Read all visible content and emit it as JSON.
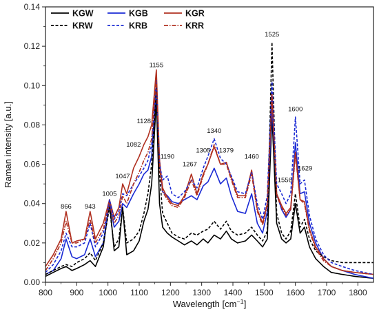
{
  "chart_data": {
    "type": "line",
    "xlabel": "Wavelength [cm",
    "xlabel_sup": "−1",
    "xlabel_end": "]",
    "ylabel": "Raman intensity [a.u.]",
    "xlim": [
      800,
      1850
    ],
    "ylim": [
      0,
      0.14
    ],
    "xticks": [
      "800",
      "900",
      "1000",
      "1100",
      "1200",
      "1300",
      "1400",
      "1500",
      "1600",
      "1700",
      "1800"
    ],
    "yticks": [
      "0.00",
      "0.02",
      "0.04",
      "0.06",
      "0.08",
      "0.10",
      "0.12",
      "0.14"
    ],
    "grid": false,
    "legend_position": "top-left",
    "peak_labels": [
      {
        "text": "866",
        "x": 866,
        "y": 0.036
      },
      {
        "text": "943",
        "x": 943,
        "y": 0.036
      },
      {
        "text": "1005",
        "x": 1005,
        "y": 0.0425
      },
      {
        "text": "1047",
        "x": 1047,
        "y": 0.0515
      },
      {
        "text": "1082",
        "x": 1082,
        "y": 0.0675
      },
      {
        "text": "1128",
        "x": 1115,
        "y": 0.0795
      },
      {
        "text": "1155",
        "x": 1155,
        "y": 0.108
      },
      {
        "text": "1190",
        "x": 1190,
        "y": 0.0615
      },
      {
        "text": "1267",
        "x": 1262,
        "y": 0.0575
      },
      {
        "text": "1305",
        "x": 1305,
        "y": 0.0645
      },
      {
        "text": "1340",
        "x": 1340,
        "y": 0.0745
      },
      {
        "text": "1379",
        "x": 1379,
        "y": 0.0645
      },
      {
        "text": "1460",
        "x": 1460,
        "y": 0.0615
      },
      {
        "text": "1525",
        "x": 1525,
        "y": 0.1235
      },
      {
        "text": "1556",
        "x": 1566,
        "y": 0.0495
      },
      {
        "text": "1600",
        "x": 1600,
        "y": 0.0855
      },
      {
        "text": "1629",
        "x": 1631,
        "y": 0.0555
      }
    ],
    "x": [
      800,
      825,
      850,
      866,
      885,
      900,
      925,
      943,
      960,
      985,
      1005,
      1020,
      1035,
      1047,
      1060,
      1082,
      1100,
      1115,
      1128,
      1140,
      1155,
      1165,
      1175,
      1190,
      1205,
      1225,
      1245,
      1267,
      1285,
      1305,
      1320,
      1340,
      1360,
      1379,
      1395,
      1415,
      1440,
      1460,
      1478,
      1495,
      1510,
      1525,
      1540,
      1556,
      1570,
      1585,
      1600,
      1615,
      1629,
      1645,
      1665,
      1690,
      1715,
      1750,
      1790,
      1850
    ],
    "series": [
      {
        "name": "KGW",
        "color": "#000000",
        "dash": "solid",
        "values": [
          0.003,
          0.005,
          0.007,
          0.008,
          0.006,
          0.007,
          0.009,
          0.011,
          0.008,
          0.018,
          0.041,
          0.016,
          0.018,
          0.038,
          0.014,
          0.016,
          0.021,
          0.031,
          0.037,
          0.05,
          0.093,
          0.04,
          0.028,
          0.025,
          0.023,
          0.021,
          0.019,
          0.021,
          0.019,
          0.022,
          0.02,
          0.024,
          0.022,
          0.026,
          0.022,
          0.02,
          0.021,
          0.024,
          0.021,
          0.018,
          0.022,
          0.085,
          0.03,
          0.022,
          0.02,
          0.022,
          0.04,
          0.025,
          0.028,
          0.018,
          0.012,
          0.008,
          0.005,
          0.004,
          0.003,
          0.002
        ]
      },
      {
        "name": "KGB",
        "color": "#1a2ad4",
        "dash": "solid",
        "values": [
          0.004,
          0.006,
          0.012,
          0.022,
          0.013,
          0.012,
          0.014,
          0.022,
          0.013,
          0.02,
          0.041,
          0.028,
          0.031,
          0.04,
          0.038,
          0.045,
          0.05,
          0.055,
          0.057,
          0.064,
          0.1,
          0.062,
          0.046,
          0.044,
          0.041,
          0.04,
          0.042,
          0.044,
          0.042,
          0.049,
          0.051,
          0.058,
          0.05,
          0.053,
          0.044,
          0.036,
          0.035,
          0.045,
          0.03,
          0.025,
          0.036,
          0.09,
          0.045,
          0.037,
          0.033,
          0.037,
          0.071,
          0.045,
          0.046,
          0.03,
          0.02,
          0.012,
          0.008,
          0.006,
          0.004,
          0.002
        ]
      },
      {
        "name": "KGR",
        "color": "#b03020",
        "dash": "solid",
        "values": [
          0.008,
          0.014,
          0.022,
          0.036,
          0.02,
          0.021,
          0.022,
          0.036,
          0.022,
          0.03,
          0.042,
          0.033,
          0.038,
          0.05,
          0.045,
          0.058,
          0.064,
          0.07,
          0.074,
          0.08,
          0.108,
          0.062,
          0.048,
          0.043,
          0.04,
          0.039,
          0.044,
          0.055,
          0.045,
          0.055,
          0.06,
          0.069,
          0.06,
          0.061,
          0.053,
          0.044,
          0.044,
          0.057,
          0.037,
          0.03,
          0.04,
          0.096,
          0.045,
          0.039,
          0.035,
          0.038,
          0.066,
          0.042,
          0.041,
          0.027,
          0.018,
          0.012,
          0.008,
          0.006,
          0.005,
          0.004
        ]
      },
      {
        "name": "KRW",
        "color": "#000000",
        "dash": "dash",
        "values": [
          0.004,
          0.006,
          0.008,
          0.009,
          0.008,
          0.01,
          0.012,
          0.015,
          0.011,
          0.02,
          0.038,
          0.018,
          0.022,
          0.038,
          0.02,
          0.022,
          0.026,
          0.035,
          0.045,
          0.06,
          0.099,
          0.055,
          0.035,
          0.03,
          0.025,
          0.023,
          0.022,
          0.025,
          0.024,
          0.026,
          0.027,
          0.031,
          0.027,
          0.031,
          0.026,
          0.024,
          0.025,
          0.028,
          0.024,
          0.021,
          0.026,
          0.122,
          0.035,
          0.025,
          0.022,
          0.026,
          0.045,
          0.028,
          0.032,
          0.022,
          0.016,
          0.013,
          0.011,
          0.01,
          0.01,
          0.01
        ]
      },
      {
        "name": "KRB",
        "color": "#1a2ad4",
        "dash": "dash",
        "values": [
          0.005,
          0.009,
          0.016,
          0.025,
          0.018,
          0.018,
          0.02,
          0.03,
          0.018,
          0.025,
          0.042,
          0.032,
          0.036,
          0.045,
          0.044,
          0.05,
          0.054,
          0.058,
          0.062,
          0.07,
          0.103,
          0.06,
          0.052,
          0.054,
          0.045,
          0.043,
          0.046,
          0.052,
          0.048,
          0.058,
          0.064,
          0.073,
          0.063,
          0.06,
          0.054,
          0.046,
          0.045,
          0.056,
          0.04,
          0.032,
          0.044,
          0.102,
          0.05,
          0.045,
          0.04,
          0.045,
          0.084,
          0.05,
          0.052,
          0.034,
          0.022,
          0.014,
          0.01,
          0.008,
          0.006,
          0.004
        ]
      },
      {
        "name": "KRR",
        "color": "#b03020",
        "dash": "dashdot",
        "values": [
          0.006,
          0.012,
          0.02,
          0.031,
          0.02,
          0.02,
          0.022,
          0.032,
          0.02,
          0.027,
          0.04,
          0.03,
          0.034,
          0.044,
          0.04,
          0.05,
          0.056,
          0.062,
          0.066,
          0.073,
          0.104,
          0.058,
          0.046,
          0.042,
          0.039,
          0.038,
          0.043,
          0.052,
          0.044,
          0.054,
          0.06,
          0.07,
          0.06,
          0.06,
          0.052,
          0.043,
          0.043,
          0.055,
          0.036,
          0.029,
          0.039,
          0.096,
          0.044,
          0.038,
          0.034,
          0.037,
          0.065,
          0.042,
          0.04,
          0.026,
          0.017,
          0.011,
          0.008,
          0.006,
          0.005,
          0.004
        ]
      }
    ]
  }
}
